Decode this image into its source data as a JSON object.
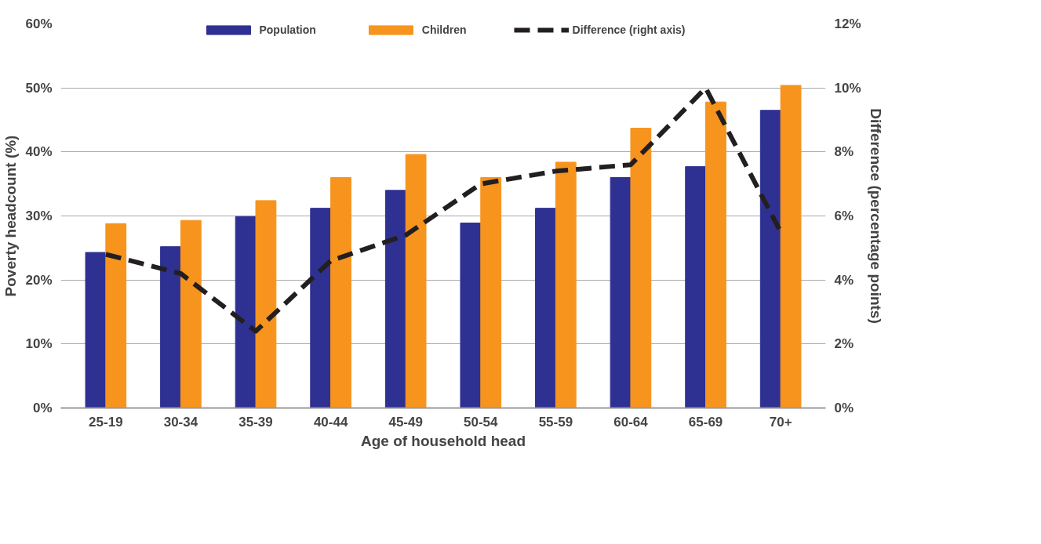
{
  "chart_data": {
    "type": "bar",
    "xlabel": "Age of household head",
    "ylabel": "Poverty headcount (%)",
    "y2label": "Difference (percentage points)",
    "categories": [
      "25-19",
      "30-34",
      "35-39",
      "40-44",
      "45-49",
      "50-54",
      "55-59",
      "60-64",
      "65-69",
      "70+"
    ],
    "series": [
      {
        "name": "Population",
        "color": "#2e3192",
        "values": [
          24.3,
          25.2,
          29.9,
          31.2,
          34.0,
          28.9,
          31.2,
          36.0,
          37.7,
          46.5
        ]
      },
      {
        "name": "Children",
        "color": "#f7941d",
        "values": [
          28.8,
          29.3,
          32.4,
          36.0,
          39.6,
          36.0,
          38.4,
          43.7,
          47.8,
          50.4
        ]
      },
      {
        "name": "Difference (right axis)",
        "type": "line",
        "axis": "y2",
        "color": "#231f20",
        "line_style": "dashed",
        "values": [
          4.8,
          4.2,
          2.4,
          4.6,
          5.4,
          7.0,
          7.4,
          7.6,
          10.0,
          5.5
        ]
      }
    ],
    "ylim": [
      0,
      60
    ],
    "yticks": [
      {
        "value": 0,
        "label": "0%"
      },
      {
        "value": 10,
        "label": "10%"
      },
      {
        "value": 20,
        "label": "20%"
      },
      {
        "value": 30,
        "label": "30%"
      },
      {
        "value": 40,
        "label": "40%"
      },
      {
        "value": 50,
        "label": "50%"
      },
      {
        "value": 60,
        "label": "60%"
      }
    ],
    "y2lim": [
      0,
      12
    ],
    "y2ticks": [
      {
        "value": 0,
        "label": "0%"
      },
      {
        "value": 2,
        "label": "2%"
      },
      {
        "value": 4,
        "label": "4%"
      },
      {
        "value": 6,
        "label": "6%"
      },
      {
        "value": 8,
        "label": "8%"
      },
      {
        "value": 10,
        "label": "10%"
      },
      {
        "value": 12,
        "label": "12%"
      }
    ],
    "grid": "y",
    "legend": "top"
  }
}
